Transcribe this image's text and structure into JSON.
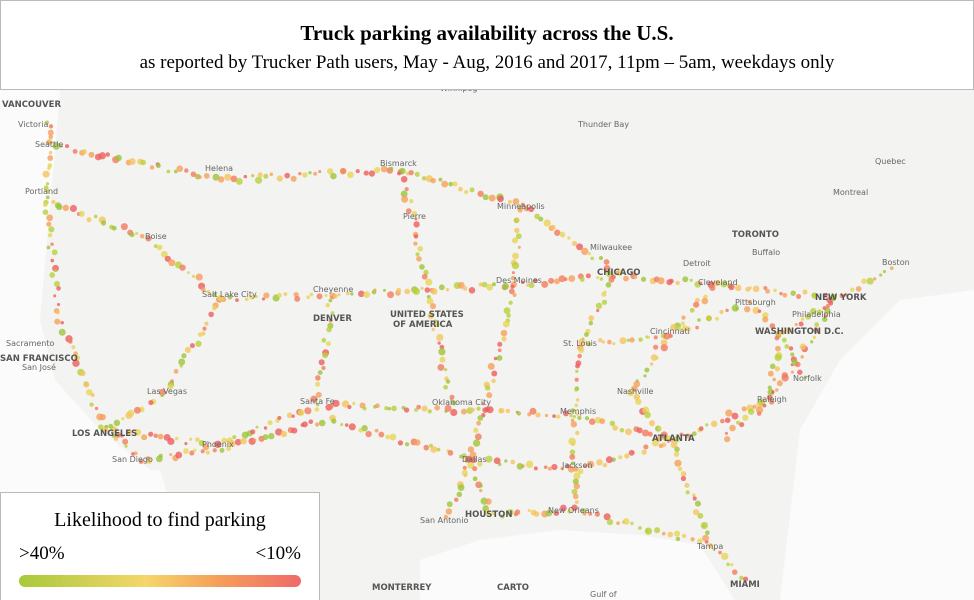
{
  "header": {
    "title": "Truck parking availability across the U.S.",
    "subtitle": "as reported by Trucker Path users, May - Aug, 2016 and 2017, 11pm – 5am, weekdays only"
  },
  "map": {
    "labels": [
      "VANCOUVER",
      "Victoria",
      "Seattle",
      "Portland",
      "Helena",
      "Bismarck",
      "Winnipeg",
      "Thunder Bay",
      "Quebec",
      "Montreal",
      "Minneapolis",
      "Pierre",
      "Boise",
      "TORONTO",
      "Buffalo",
      "Milwaukee",
      "Detroit",
      "Boston",
      "CHICAGO",
      "Des Moines",
      "Cleveland",
      "Salt Lake City",
      "Cheyenne",
      "Pittsburgh",
      "NEW YORK",
      "DENVER",
      "UNITED STATES",
      "OF AMERICA",
      "Philadelphia",
      "Cincinnati",
      "WASHINGTON D.C.",
      "Sacramento",
      "SAN FRANCISCO",
      "San José",
      "St. Louis",
      "Norfolk",
      "Las Vegas",
      "Nashville",
      "Santa Fe",
      "Oklahoma City",
      "Memphis",
      "Raleigh",
      "LOS ANGELES",
      "Phoenix",
      "ATLANTA",
      "Dallas",
      "San Diego",
      "Jackson",
      "New Orleans",
      "HOUSTON",
      "San Antonio",
      "Tampa",
      "MONTERREY",
      "MIAMI",
      "Gulf of"
    ],
    "attribution": "CARTO"
  },
  "legend": {
    "title": "Likelihood to find parking",
    "low_label": ">40%",
    "high_label": "<10%"
  }
}
